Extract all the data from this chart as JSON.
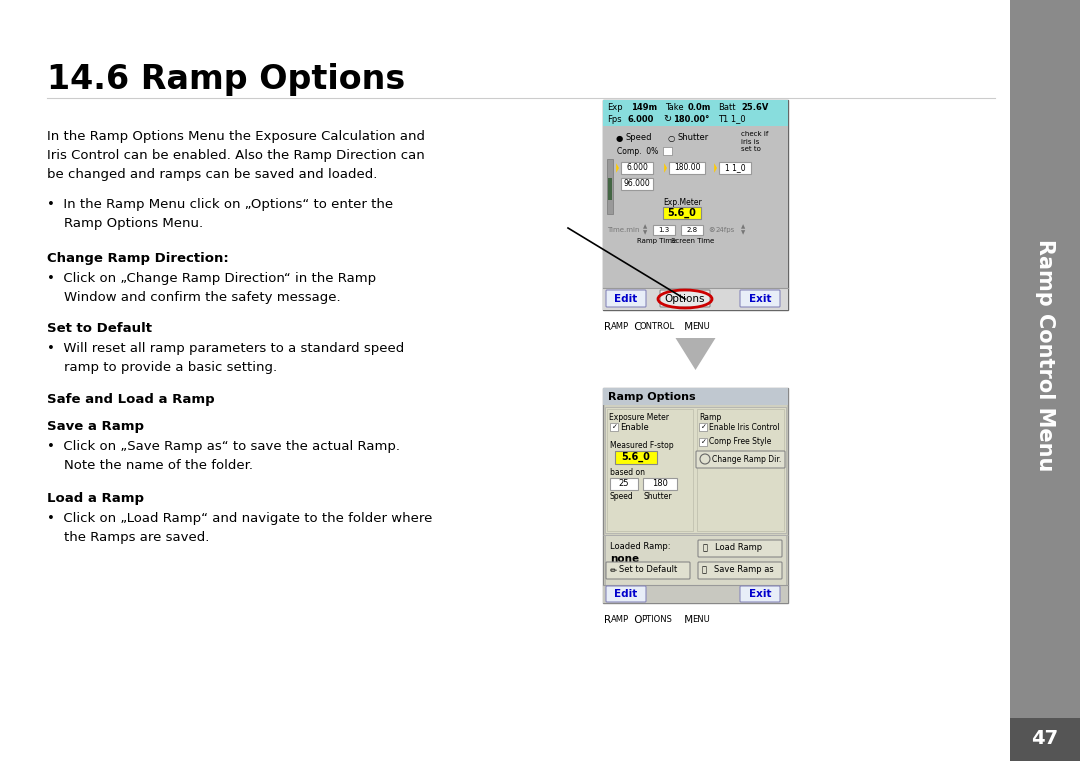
{
  "title": "14.6 Ramp Options",
  "title_fontsize": 24,
  "body_text": "In the Ramp Options Menu the Exposure Calculation and\nIris Control can be enabled. Also the Ramp Direction can\nbe changed and ramps can be saved and loaded.",
  "bullet1": "•  In the Ramp Menu click on „Options“ to enter the\n    Ramp Options Menu.",
  "section1_head": "Change Ramp Direction:",
  "section1_bullet": "•  Click on „Change Ramp Direction“ in the Ramp\n    Window and confirm the safety message.",
  "section2_head": "Set to Default",
  "section2_bullet": "•  Will reset all ramp parameters to a standard speed\n    ramp to provide a basic setting.",
  "section3_head": "Safe and Load a Ramp",
  "section4_head": "Save a Ramp",
  "section4_bullet": "•  Click on „Save Ramp as“ to save the actual Ramp.\n    Note the name of the folder.",
  "section5_head": "Load a Ramp",
  "section5_bullet": "•  Click on „Load Ramp“ and navigate to the folder where\n    the Ramps are saved.",
  "tab_label1": "Ramp Control Menu",
  "tab_label2": "Ramp Options Menu",
  "sidebar_text": "Ramp Control Menu",
  "page_number": "47",
  "bg_color": "#ffffff",
  "sidebar_bg": "#8a8a8a",
  "sidebar_text_color": "#ffffff",
  "text_color": "#000000",
  "ramp_ctrl_bg": "#d0d0d0",
  "ramp_opts_bg": "#d8d8c8",
  "yellow_bg": "#ffff00",
  "blue_text": "#0000cc",
  "red_circle_color": "#cc0000",
  "arrow_color": "#b0b0b0"
}
